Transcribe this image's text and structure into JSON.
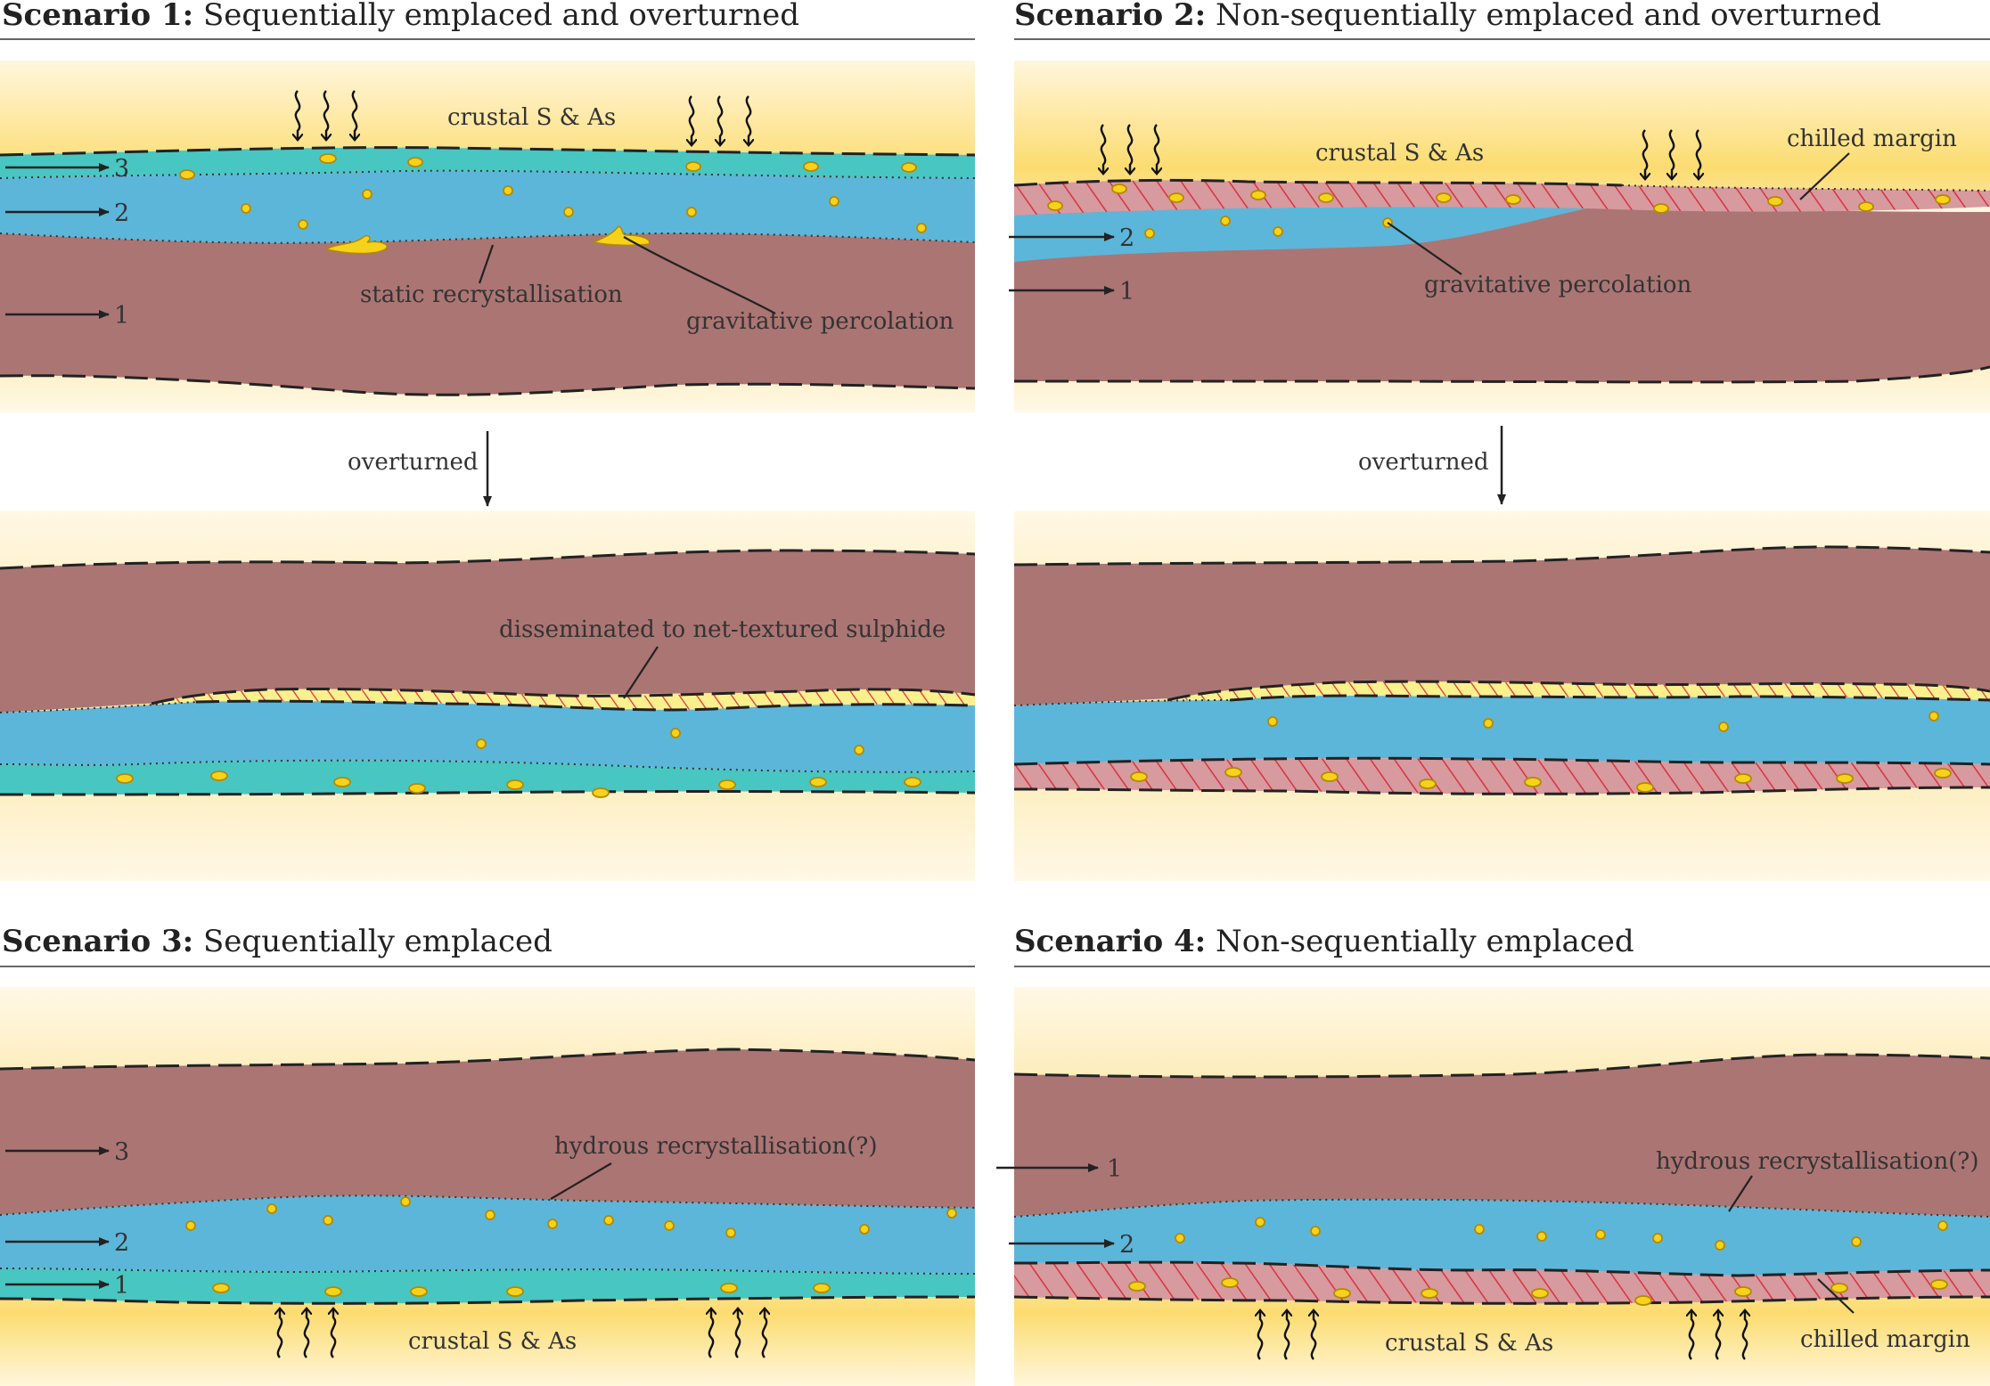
{
  "colors": {
    "brown_layer": "#ab7574",
    "blue_layer": "#5cb6d9",
    "teal_layer": "#48c6c2",
    "chilled_fill": "#d69a9f",
    "hatch_red": "#d9323f",
    "sulphide_yellow": "#f6d21a",
    "host_yellow": "#fbe7a0"
  },
  "scenario1": {
    "title_bold": "Scenario 1:",
    "title_rest": " Sequentially emplaced and overturned",
    "crustal_label": "crustal S & As",
    "static_label": "static recrystallisation",
    "percolation_label": "gravitative percolation",
    "arrow_labels": [
      "3",
      "2",
      "1"
    ],
    "overturned_label": "overturned",
    "disseminated_label": "disseminated to net-textured sulphide"
  },
  "scenario2": {
    "title_bold": "Scenario 2:",
    "title_rest": " Non-sequentially emplaced and overturned",
    "crustal_label": "crustal S & As",
    "chilled_label": "chilled margin",
    "percolation_label": "gravitative percolation",
    "arrow_labels": [
      "2",
      "1"
    ],
    "overturned_label": "overturned"
  },
  "scenario3": {
    "title_bold": "Scenario 3:",
    "title_rest": " Sequentially emplaced",
    "hydrous_label": "hydrous recrystallisation(?)",
    "crustal_label": "crustal S & As",
    "arrow_labels": [
      "3",
      "2",
      "1"
    ]
  },
  "scenario4": {
    "title_bold": "Scenario 4:",
    "title_rest": " Non-sequentially emplaced",
    "hydrous_label": "hydrous recrystallisation(?)",
    "crustal_label": "crustal S & As",
    "chilled_label": "chilled margin",
    "arrow_labels": [
      "1",
      "2"
    ]
  }
}
